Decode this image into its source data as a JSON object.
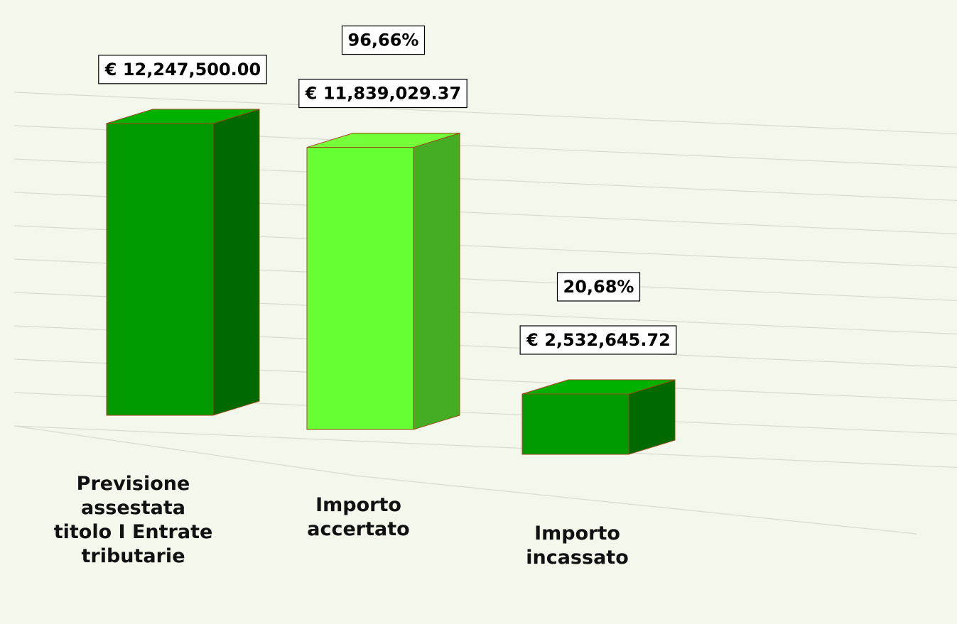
{
  "chart_data": {
    "type": "bar3d",
    "categories": [
      "Previsione assestata titolo I Entrate tributarie",
      "Importo accertato",
      "Importo incassato"
    ],
    "values": [
      12247500.0,
      11839029.37,
      2532645.72
    ],
    "value_labels": [
      "€ 12,247,500.00",
      "€ 11,839,029.37",
      "€ 2,532,645.72"
    ],
    "percent_labels": [
      null,
      "96,66%",
      "20,68%"
    ],
    "colors": [
      "#009a00",
      "#66ff33",
      "#009a00"
    ],
    "ylim": [
      0,
      14000000
    ],
    "grid": true
  }
}
